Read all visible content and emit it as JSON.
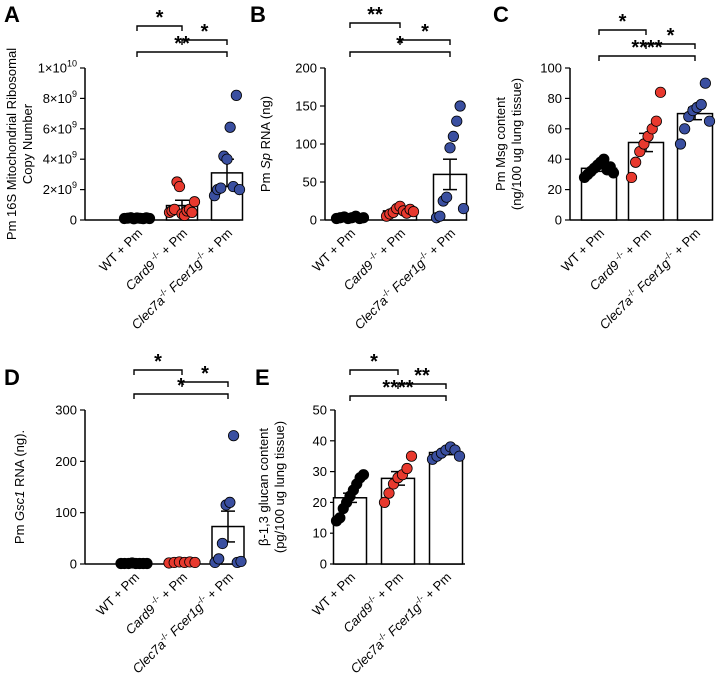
{
  "chart_data": [
    {
      "panel": "A",
      "type": "bar",
      "ylabel": [
        "Pm 16S Mitochondrial Ribosomal",
        "Copy Number"
      ],
      "ytick_labels": [
        {
          "v": 0,
          "b": "0",
          "e": ""
        },
        {
          "v": 2000000000.0,
          "b": "2×10",
          "e": "9"
        },
        {
          "v": 4000000000.0,
          "b": "4×10",
          "e": "9"
        },
        {
          "v": 6000000000.0,
          "b": "6×10",
          "e": "9"
        },
        {
          "v": 8000000000.0,
          "b": "8×10",
          "e": "9"
        },
        {
          "v": 10000000000.0,
          "b": "1×10",
          "e": "10"
        }
      ],
      "ylim": [
        0,
        10000000000.0
      ],
      "categories": [
        [
          {
            "t": "WT + Pm"
          }
        ],
        [
          {
            "t": "Card9",
            "i": true
          },
          {
            "t": " -/-",
            "s": true
          },
          {
            "t": " + Pm"
          }
        ],
        [
          {
            "t": "Clec7a",
            "i": true
          },
          {
            "t": "-/-",
            "s": true
          },
          {
            "t": " Fcer1g",
            "i": true
          },
          {
            "t": "-/-",
            "s": true
          },
          {
            "t": " + Pm"
          }
        ]
      ],
      "colors": [
        "#000000",
        "#e8392e",
        "#3a4fa0"
      ],
      "means": [
        120000000.0,
        950000000.0,
        3100000000.0
      ],
      "sems": [
        20000000.0,
        350000000.0,
        900000000.0
      ],
      "points": [
        [
          100000000.0,
          120000000.0,
          150000000.0,
          80000000.0,
          130000000.0,
          110000000.0,
          90000000.0,
          140000000.0,
          100000000.0
        ],
        [
          500000000.0,
          600000000.0,
          700000000.0,
          2500000000.0,
          2200000000.0,
          400000000.0,
          300000000.0,
          600000000.0,
          700000000.0,
          500000000.0,
          1200000000.0
        ],
        [
          1600000000.0,
          2000000000.0,
          2100000000.0,
          4200000000.0,
          4000000000.0,
          6100000000.0,
          2200000000.0,
          8200000000.0,
          2000000000.0
        ]
      ],
      "brackets": [
        {
          "a": 0,
          "b": 1,
          "level": 0,
          "label": "*"
        },
        {
          "a": 1,
          "b": 2,
          "level": 1,
          "label": "*"
        },
        {
          "a": 0,
          "b": 2,
          "level": 2,
          "label": "**"
        }
      ]
    },
    {
      "panel": "B",
      "type": "bar",
      "ylabel": [
        [
          {
            "t": "Pm "
          },
          {
            "t": "Sp",
            "i": true
          },
          {
            "t": " RNA (ng)"
          }
        ]
      ],
      "ytick_labels": [
        {
          "v": 0,
          "b": "0"
        },
        {
          "v": 50,
          "b": "50"
        },
        {
          "v": 100,
          "b": "100"
        },
        {
          "v": 150,
          "b": "150"
        },
        {
          "v": 200,
          "b": "200"
        }
      ],
      "ylim": [
        0,
        200
      ],
      "categories": [
        [
          {
            "t": "WT + Pm"
          }
        ],
        [
          {
            "t": "Card9",
            "i": true
          },
          {
            "t": " -/-",
            "s": true
          },
          {
            "t": " + Pm"
          }
        ],
        [
          {
            "t": "Clec7a",
            "i": true
          },
          {
            "t": "-/-",
            "s": true
          },
          {
            "t": " Fcer1g",
            "i": true
          },
          {
            "t": "-/-",
            "s": true
          },
          {
            "t": " + Pm"
          }
        ]
      ],
      "colors": [
        "#000000",
        "#e8392e",
        "#3a4fa0"
      ],
      "means": [
        3,
        12,
        60
      ],
      "sems": [
        0.8,
        2,
        20
      ],
      "points": [
        [
          2,
          3,
          4,
          2,
          3,
          5,
          2,
          3
        ],
        [
          5,
          8,
          10,
          15,
          18,
          12,
          9,
          14,
          11
        ],
        [
          3,
          5,
          25,
          30,
          95,
          110,
          130,
          150,
          15
        ]
      ],
      "brackets": [
        {
          "a": 0,
          "b": 1,
          "level": 0,
          "label": "**"
        },
        {
          "a": 1,
          "b": 2,
          "level": 1,
          "label": "*"
        },
        {
          "a": 0,
          "b": 2,
          "level": 2,
          "label": "*"
        }
      ]
    },
    {
      "panel": "C",
      "type": "bar",
      "ylabel": [
        "Pm Msg content",
        "(ng/100 ug lung tissue)"
      ],
      "ytick_labels": [
        {
          "v": 0,
          "b": "0"
        },
        {
          "v": 20,
          "b": "20"
        },
        {
          "v": 40,
          "b": "40"
        },
        {
          "v": 60,
          "b": "60"
        },
        {
          "v": 80,
          "b": "80"
        },
        {
          "v": 100,
          "b": "100"
        }
      ],
      "ylim": [
        0,
        100
      ],
      "categories": [
        [
          {
            "t": "WT + Pm"
          }
        ],
        [
          {
            "t": "Card9",
            "i": true
          },
          {
            "t": " -/-",
            "s": true
          },
          {
            "t": " + Pm"
          }
        ],
        [
          {
            "t": "Clec7a",
            "i": true
          },
          {
            "t": "-/-",
            "s": true
          },
          {
            "t": " Fcer1g",
            "i": true
          },
          {
            "t": "-/-",
            "s": true
          },
          {
            "t": " + Pm"
          }
        ]
      ],
      "colors": [
        "#000000",
        "#e8392e",
        "#3a4fa0"
      ],
      "means": [
        34,
        51,
        70
      ],
      "sems": [
        2,
        6,
        4
      ],
      "points": [
        [
          28,
          30,
          32,
          34,
          36,
          38,
          40,
          33,
          35,
          31
        ],
        [
          28,
          38,
          45,
          50,
          55,
          60,
          65,
          84
        ],
        [
          50,
          60,
          68,
          72,
          74,
          76,
          90,
          65
        ]
      ],
      "brackets": [
        {
          "a": 0,
          "b": 1,
          "level": 0,
          "label": "*"
        },
        {
          "a": 1,
          "b": 2,
          "level": 1,
          "label": "*"
        },
        {
          "a": 0,
          "b": 2,
          "level": 2,
          "label": "****"
        }
      ]
    },
    {
      "panel": "D",
      "type": "bar",
      "ylabel": [
        [
          {
            "t": "Pm "
          },
          {
            "t": "Gsc1",
            "i": true
          },
          {
            "t": " RNA (ng)."
          }
        ]
      ],
      "ytick_labels": [
        {
          "v": 0,
          "b": "0"
        },
        {
          "v": 100,
          "b": "100"
        },
        {
          "v": 200,
          "b": "200"
        },
        {
          "v": 300,
          "b": "300"
        }
      ],
      "ylim": [
        0,
        300
      ],
      "categories": [
        [
          {
            "t": "WT + Pm"
          }
        ],
        [
          {
            "t": "Card9",
            "i": true
          },
          {
            "t": " -/-",
            "s": true
          },
          {
            "t": " + Pm"
          }
        ],
        [
          {
            "t": "Clec7a",
            "i": true
          },
          {
            "t": "-/-",
            "s": true
          },
          {
            "t": " Fcer1g",
            "i": true
          },
          {
            "t": "-/-",
            "s": true
          },
          {
            "t": " + Pm"
          }
        ]
      ],
      "colors": [
        "#000000",
        "#e8392e",
        "#3a4fa0"
      ],
      "means": [
        1,
        3,
        73
      ],
      "sems": [
        0.3,
        0.8,
        30
      ],
      "points": [
        [
          1,
          1,
          1,
          2,
          1,
          1,
          1,
          1
        ],
        [
          2,
          3,
          4,
          3,
          4,
          3
        ],
        [
          3,
          10,
          40,
          115,
          120,
          250,
          3,
          5
        ]
      ],
      "brackets": [
        {
          "a": 0,
          "b": 1,
          "level": 0,
          "label": "*"
        },
        {
          "a": 1,
          "b": 2,
          "level": 1,
          "label": "*"
        },
        {
          "a": 0,
          "b": 2,
          "level": 2,
          "label": "*"
        }
      ]
    },
    {
      "panel": "E",
      "type": "bar",
      "ylabel": [
        "β-1,3 glucan content",
        "(pg/100 ug lung tissue)"
      ],
      "ytick_labels": [
        {
          "v": 0,
          "b": "0"
        },
        {
          "v": 10,
          "b": "10"
        },
        {
          "v": 20,
          "b": "20"
        },
        {
          "v": 30,
          "b": "30"
        },
        {
          "v": 40,
          "b": "40"
        },
        {
          "v": 50,
          "b": "50"
        }
      ],
      "ylim": [
        0,
        50
      ],
      "categories": [
        [
          {
            "t": "WT + Pm"
          }
        ],
        [
          {
            "t": "Card9",
            "i": true
          },
          {
            "t": "-/-",
            "s": true
          },
          {
            "t": " + Pm"
          }
        ],
        [
          {
            "t": "Clec7a",
            "i": true
          },
          {
            "t": "-/-",
            "s": true
          },
          {
            "t": " Fcer1g",
            "i": true
          },
          {
            "t": "-/-",
            "s": true
          },
          {
            "t": " + Pm"
          }
        ]
      ],
      "colors": [
        "#000000",
        "#e8392e",
        "#3a4fa0"
      ],
      "means": [
        21.5,
        27.8,
        36.2
      ],
      "sems": [
        1.5,
        2.2,
        0.7
      ],
      "points": [
        [
          14,
          15,
          18,
          20,
          22,
          24,
          26,
          28,
          29
        ],
        [
          20,
          23,
          26,
          28,
          29,
          31,
          35
        ],
        [
          34,
          35,
          36,
          37,
          38,
          37,
          35
        ]
      ],
      "brackets": [
        {
          "a": 0,
          "b": 1,
          "level": 0,
          "label": "*"
        },
        {
          "a": 1,
          "b": 2,
          "level": 1,
          "label": "**"
        },
        {
          "a": 0,
          "b": 2,
          "level": 2,
          "label": "****"
        }
      ]
    }
  ]
}
